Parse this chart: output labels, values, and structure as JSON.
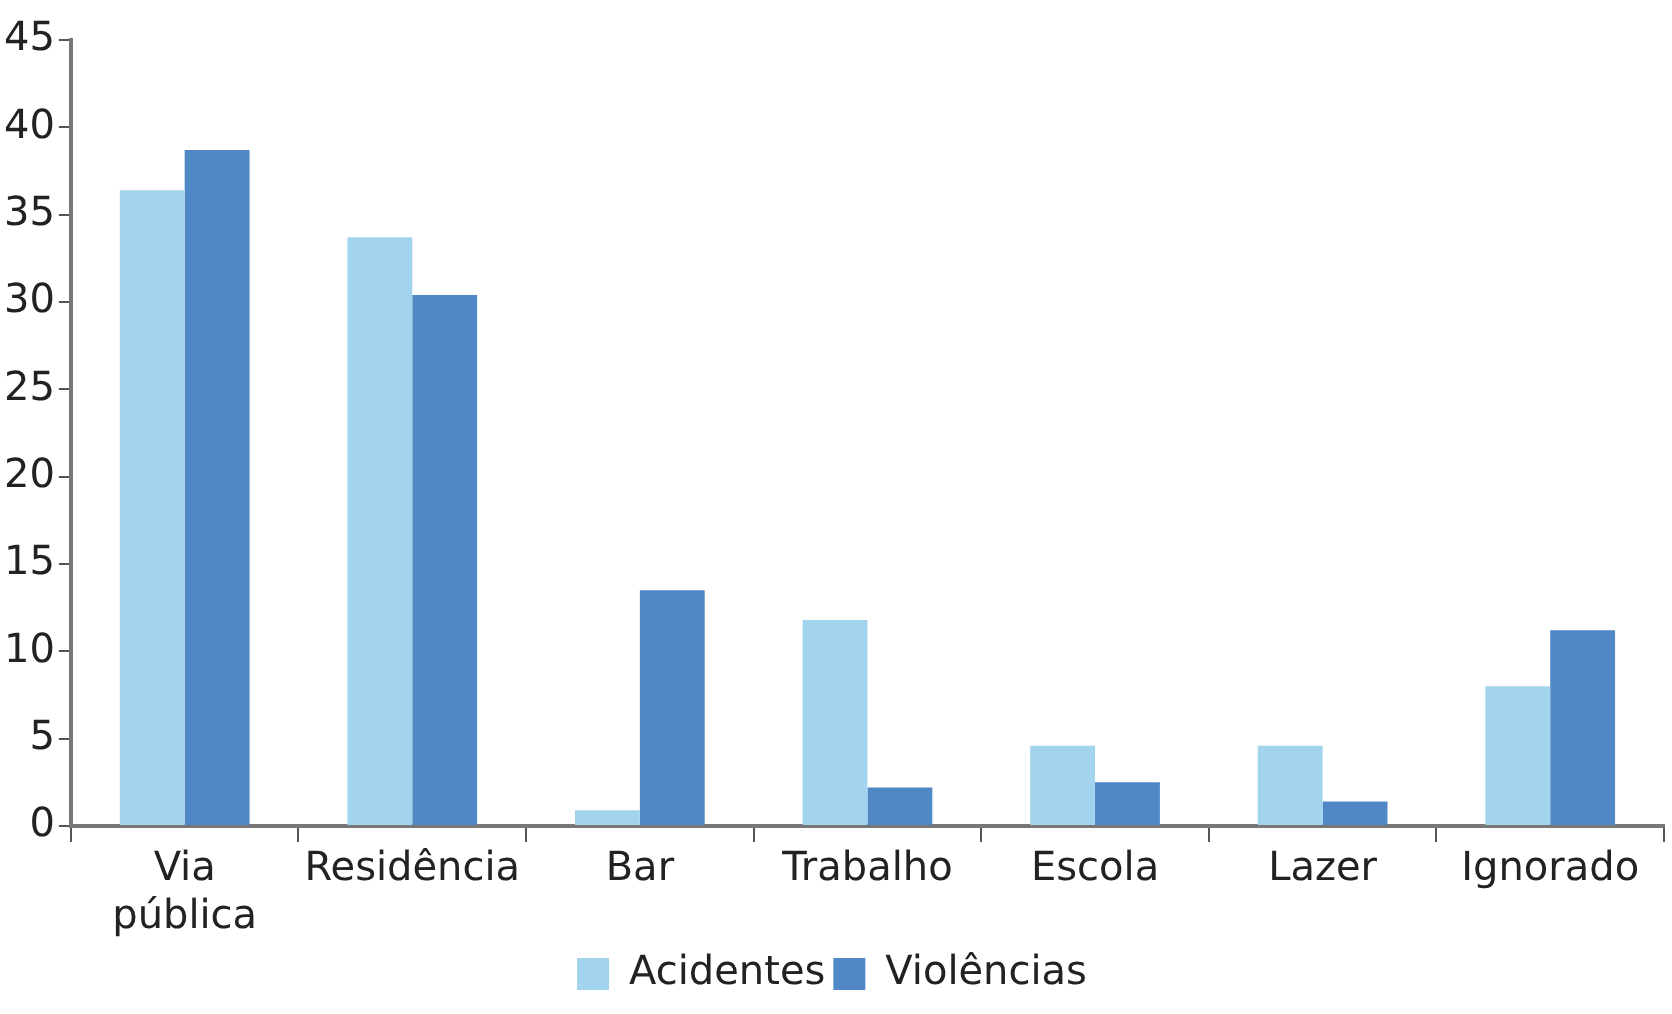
{
  "chart_data": {
    "type": "bar",
    "categories": [
      "Via pública",
      "Residência",
      "Bar",
      "Trabalho",
      "Escola",
      "Lazer",
      "Ignorado"
    ],
    "series": [
      {
        "name": "Acidentes",
        "color": "#a3d4ed",
        "values": [
          36.4,
          33.7,
          0.9,
          11.8,
          4.6,
          4.6,
          8.0
        ]
      },
      {
        "name": "Violências",
        "color": "#4f88c4",
        "values": [
          38.7,
          30.4,
          13.5,
          2.2,
          2.5,
          1.4,
          11.2
        ]
      }
    ],
    "ylim": [
      0,
      45
    ],
    "yticks": [
      0,
      5,
      10,
      15,
      20,
      25,
      30,
      35,
      40,
      45
    ],
    "grid": false,
    "legend": "bottom"
  }
}
